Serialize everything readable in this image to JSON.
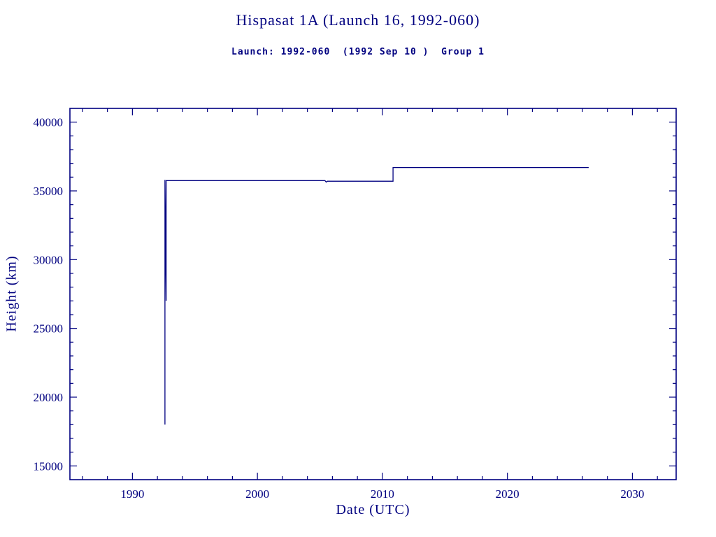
{
  "colors": {
    "ink": "#000080",
    "background": "#ffffff"
  },
  "chart_data": {
    "type": "line",
    "title": "Hispasat 1A (Launch 16, 1992-060)",
    "subtitle": "Launch: 1992-060  (1992 Sep 10 )  Group 1",
    "xlabel": "Date (UTC)",
    "ylabel": "Height (km)",
    "xlim": [
      1985,
      2033.5
    ],
    "ylim": [
      14000,
      41000
    ],
    "xticks": [
      1990,
      2000,
      2010,
      2020,
      2030
    ],
    "yticks": [
      15000,
      20000,
      25000,
      30000,
      35000,
      40000
    ],
    "x_minor_step": 2,
    "y_minor_step": 1000,
    "grid": false,
    "legend": "none",
    "line_color": "#000080",
    "series": [
      {
        "name": "height-km",
        "points": [
          [
            1992.6,
            18000
          ],
          [
            1992.6,
            35800
          ],
          [
            1992.7,
            27000
          ],
          [
            1992.7,
            35750
          ],
          [
            2005.4,
            35750
          ],
          [
            2005.5,
            35640
          ],
          [
            2005.6,
            35700
          ],
          [
            2010.85,
            35700
          ],
          [
            2010.85,
            36700
          ],
          [
            2026.5,
            36700
          ]
        ]
      }
    ]
  }
}
